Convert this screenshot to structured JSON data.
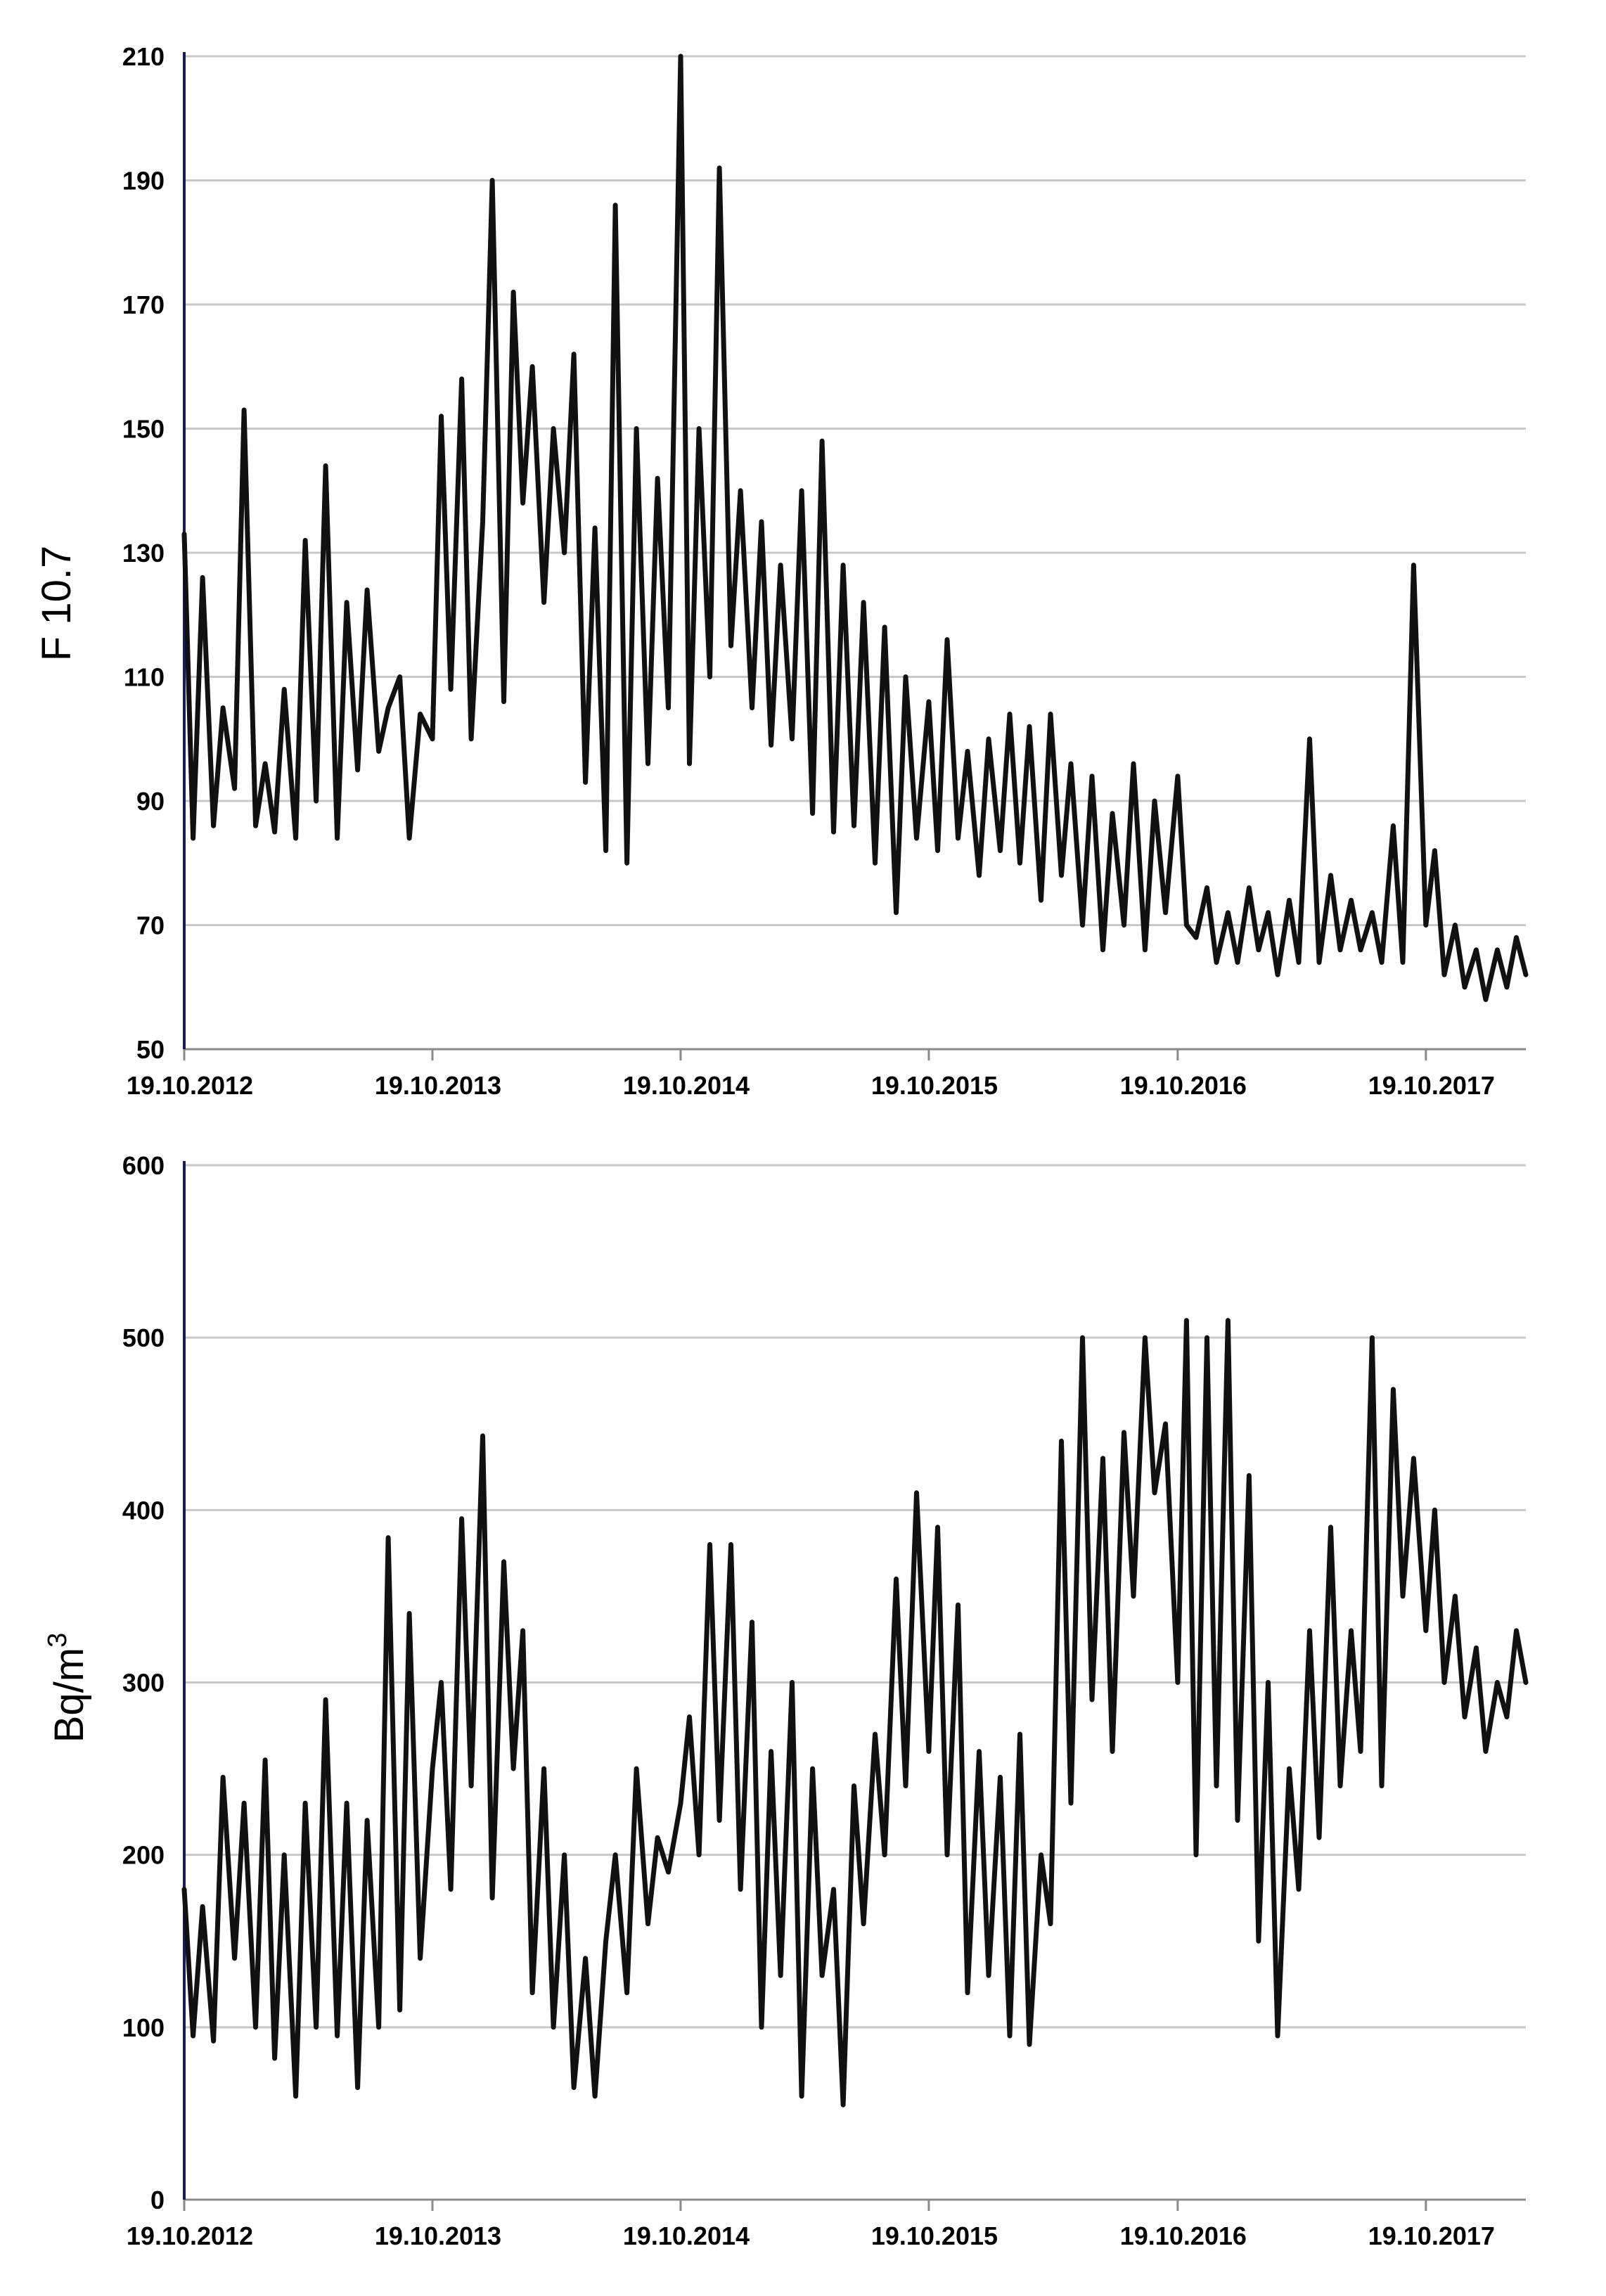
{
  "chart_data": [
    {
      "type": "line",
      "ylabel": "F 10.7",
      "xlabel": "",
      "title": "",
      "ylim": [
        50,
        210
      ],
      "yticks": [
        50,
        70,
        90,
        110,
        130,
        150,
        170,
        190,
        210
      ],
      "xlim": [
        "2012-10-19",
        "2018-03-15"
      ],
      "xticks": [
        "2012-10-19",
        "2013-10-19",
        "2014-10-19",
        "2015-10-19",
        "2016-10-19",
        "2017-10-19"
      ],
      "xtick_labels": [
        "19.10.2012",
        "19.10.2013",
        "19.10.2014",
        "19.10.2015",
        "19.10.2016",
        "19.10.2017"
      ],
      "grid": "horizontal",
      "line_color": "#111111",
      "series": [
        {
          "x": [
            "2012-10-19",
            "2012-11-01",
            "2012-11-15",
            "2012-12-01",
            "2012-12-15",
            "2013-01-01",
            "2013-01-15",
            "2013-02-01",
            "2013-02-15",
            "2013-03-01",
            "2013-03-15",
            "2013-04-01",
            "2013-04-15",
            "2013-05-01",
            "2013-05-15",
            "2013-06-01",
            "2013-06-15",
            "2013-07-01",
            "2013-07-15",
            "2013-08-01",
            "2013-08-15",
            "2013-09-01",
            "2013-09-15",
            "2013-10-01",
            "2013-10-19",
            "2013-11-01",
            "2013-11-15",
            "2013-12-01",
            "2013-12-15",
            "2014-01-01",
            "2014-01-15",
            "2014-02-01",
            "2014-02-15",
            "2014-03-01",
            "2014-03-15",
            "2014-04-01",
            "2014-04-15",
            "2014-05-01",
            "2014-05-15",
            "2014-06-01",
            "2014-06-15",
            "2014-07-01",
            "2014-07-15",
            "2014-08-01",
            "2014-08-15",
            "2014-09-01",
            "2014-09-15",
            "2014-10-01",
            "2014-10-19",
            "2014-11-01",
            "2014-11-15",
            "2014-12-01",
            "2014-12-15",
            "2015-01-01",
            "2015-01-15",
            "2015-02-01",
            "2015-02-15",
            "2015-03-01",
            "2015-03-15",
            "2015-04-01",
            "2015-04-15",
            "2015-05-01",
            "2015-05-15",
            "2015-06-01",
            "2015-06-15",
            "2015-07-01",
            "2015-07-15",
            "2015-08-01",
            "2015-08-15",
            "2015-09-01",
            "2015-09-15",
            "2015-10-01",
            "2015-10-19",
            "2015-11-01",
            "2015-11-15",
            "2015-12-01",
            "2015-12-15",
            "2016-01-01",
            "2016-01-15",
            "2016-02-01",
            "2016-02-15",
            "2016-03-01",
            "2016-03-15",
            "2016-04-01",
            "2016-04-15",
            "2016-05-01",
            "2016-05-15",
            "2016-06-01",
            "2016-06-15",
            "2016-07-01",
            "2016-07-15",
            "2016-08-01",
            "2016-08-15",
            "2016-09-01",
            "2016-09-15",
            "2016-10-01",
            "2016-10-19",
            "2016-11-01",
            "2016-11-15",
            "2016-12-01",
            "2016-12-15",
            "2017-01-01",
            "2017-01-15",
            "2017-02-01",
            "2017-02-15",
            "2017-03-01",
            "2017-03-15",
            "2017-04-01",
            "2017-04-15",
            "2017-05-01",
            "2017-05-15",
            "2017-06-01",
            "2017-06-15",
            "2017-07-01",
            "2017-07-15",
            "2017-08-01",
            "2017-08-15",
            "2017-09-01",
            "2017-09-15",
            "2017-10-01",
            "2017-10-19",
            "2017-11-01",
            "2017-11-15",
            "2017-12-01",
            "2017-12-15",
            "2018-01-01",
            "2018-01-15",
            "2018-02-01",
            "2018-02-15",
            "2018-03-01",
            "2018-03-15"
          ],
          "y": [
            133,
            84,
            126,
            86,
            105,
            92,
            153,
            86,
            96,
            85,
            108,
            84,
            132,
            90,
            144,
            84,
            122,
            95,
            124,
            98,
            105,
            110,
            84,
            104,
            100,
            152,
            108,
            158,
            100,
            135,
            190,
            106,
            172,
            138,
            160,
            122,
            150,
            130,
            162,
            93,
            134,
            82,
            186,
            80,
            150,
            96,
            142,
            105,
            210,
            96,
            150,
            110,
            192,
            115,
            140,
            105,
            135,
            99,
            128,
            100,
            140,
            88,
            148,
            85,
            128,
            86,
            122,
            80,
            118,
            72,
            110,
            84,
            106,
            82,
            116,
            84,
            98,
            78,
            100,
            82,
            104,
            80,
            102,
            74,
            104,
            78,
            96,
            70,
            94,
            66,
            88,
            70,
            96,
            66,
            90,
            72,
            94,
            70,
            68,
            76,
            64,
            72,
            64,
            76,
            66,
            72,
            62,
            74,
            64,
            100,
            64,
            78,
            66,
            74,
            66,
            72,
            64,
            86,
            64,
            128,
            70,
            82,
            62,
            70,
            60,
            66,
            58,
            66,
            60,
            68,
            62
          ]
        }
      ]
    },
    {
      "type": "line",
      "ylabel": "Bq/m",
      "ylabel_superscript": "3",
      "xlabel": "",
      "title": "",
      "ylim": [
        0,
        600
      ],
      "yticks": [
        0,
        100,
        200,
        300,
        400,
        500,
        600
      ],
      "xlim": [
        "2012-10-19",
        "2018-03-15"
      ],
      "xticks": [
        "2012-10-19",
        "2013-10-19",
        "2014-10-19",
        "2015-10-19",
        "2016-10-19",
        "2017-10-19"
      ],
      "xtick_labels": [
        "19.10.2012",
        "19.10.2013",
        "19.10.2014",
        "19.10.2015",
        "19.10.2016",
        "19.10.2017"
      ],
      "grid": "horizontal",
      "line_color": "#111111",
      "series": [
        {
          "x": [
            "2012-10-19",
            "2012-11-01",
            "2012-11-15",
            "2012-12-01",
            "2012-12-15",
            "2013-01-01",
            "2013-01-15",
            "2013-02-01",
            "2013-02-15",
            "2013-03-01",
            "2013-03-15",
            "2013-04-01",
            "2013-04-15",
            "2013-05-01",
            "2013-05-15",
            "2013-06-01",
            "2013-06-15",
            "2013-07-01",
            "2013-07-15",
            "2013-08-01",
            "2013-08-15",
            "2013-09-01",
            "2013-09-15",
            "2013-10-01",
            "2013-10-19",
            "2013-11-01",
            "2013-11-15",
            "2013-12-01",
            "2013-12-15",
            "2014-01-01",
            "2014-01-15",
            "2014-02-01",
            "2014-02-15",
            "2014-03-01",
            "2014-03-15",
            "2014-04-01",
            "2014-04-15",
            "2014-05-01",
            "2014-05-15",
            "2014-06-01",
            "2014-06-15",
            "2014-07-01",
            "2014-07-15",
            "2014-08-01",
            "2014-08-15",
            "2014-09-01",
            "2014-09-15",
            "2014-10-01",
            "2014-10-19",
            "2014-11-01",
            "2014-11-15",
            "2014-12-01",
            "2014-12-15",
            "2015-01-01",
            "2015-01-15",
            "2015-02-01",
            "2015-02-15",
            "2015-03-01",
            "2015-03-15",
            "2015-04-01",
            "2015-04-15",
            "2015-05-01",
            "2015-05-15",
            "2015-06-01",
            "2015-06-15",
            "2015-07-01",
            "2015-07-15",
            "2015-08-01",
            "2015-08-15",
            "2015-09-01",
            "2015-09-15",
            "2015-10-01",
            "2015-10-19",
            "2015-11-01",
            "2015-11-15",
            "2015-12-01",
            "2015-12-15",
            "2016-01-01",
            "2016-01-15",
            "2016-02-01",
            "2016-02-15",
            "2016-03-01",
            "2016-03-15",
            "2016-04-01",
            "2016-04-15",
            "2016-05-01",
            "2016-05-15",
            "2016-06-01",
            "2016-06-15",
            "2016-07-01",
            "2016-07-15",
            "2016-08-01",
            "2016-08-15",
            "2016-09-01",
            "2016-09-15",
            "2016-10-01",
            "2016-10-19",
            "2016-11-01",
            "2016-11-15",
            "2016-12-01",
            "2016-12-15",
            "2017-01-01",
            "2017-01-15",
            "2017-02-01",
            "2017-02-15",
            "2017-03-01",
            "2017-03-15",
            "2017-04-01",
            "2017-04-15",
            "2017-05-01",
            "2017-05-15",
            "2017-06-01",
            "2017-06-15",
            "2017-07-01",
            "2017-07-15",
            "2017-08-01",
            "2017-08-15",
            "2017-09-01",
            "2017-09-15",
            "2017-10-01",
            "2017-10-19",
            "2017-11-01",
            "2017-11-15",
            "2017-12-01",
            "2017-12-15",
            "2018-01-01",
            "2018-01-15",
            "2018-02-01",
            "2018-02-15",
            "2018-03-01",
            "2018-03-15"
          ],
          "y": [
            180,
            95,
            170,
            92,
            245,
            140,
            230,
            100,
            255,
            82,
            200,
            60,
            230,
            100,
            290,
            95,
            230,
            65,
            220,
            100,
            384,
            110,
            340,
            140,
            250,
            300,
            180,
            395,
            240,
            443,
            175,
            370,
            250,
            330,
            120,
            250,
            100,
            200,
            65,
            140,
            60,
            150,
            200,
            120,
            250,
            160,
            210,
            190,
            230,
            280,
            200,
            380,
            220,
            380,
            180,
            335,
            100,
            260,
            130,
            300,
            60,
            250,
            130,
            180,
            55,
            240,
            160,
            270,
            200,
            360,
            240,
            410,
            260,
            390,
            200,
            345,
            120,
            260,
            130,
            245,
            95,
            270,
            90,
            200,
            160,
            440,
            230,
            500,
            290,
            430,
            260,
            445,
            350,
            500,
            410,
            450,
            300,
            510,
            200,
            500,
            240,
            510,
            220,
            420,
            150,
            300,
            95,
            250,
            180,
            330,
            210,
            390,
            240,
            330,
            260,
            500,
            240,
            470,
            350,
            430,
            330,
            400,
            300,
            350,
            280,
            320,
            260,
            300,
            280,
            330,
            300
          ]
        }
      ]
    }
  ]
}
